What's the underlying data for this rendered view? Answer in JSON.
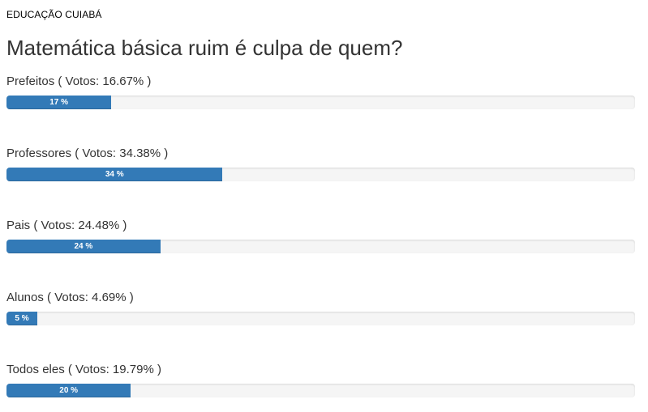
{
  "site_label": "EDUCAÇÃO CUIABÁ",
  "poll": {
    "title": "Matemática básica ruim é culpa de quem?",
    "bar_color": "#337ab7",
    "track_color": "#f5f5f5",
    "options": [
      {
        "label": "Prefeitos ( Votos: 16.67% )",
        "percent": 16.67,
        "bar_text": "17 %"
      },
      {
        "label": "Professores ( Votos: 34.38% )",
        "percent": 34.38,
        "bar_text": "34 %"
      },
      {
        "label": "Pais ( Votos: 24.48% )",
        "percent": 24.48,
        "bar_text": "24 %"
      },
      {
        "label": "Alunos ( Votos: 4.69% )",
        "percent": 4.69,
        "bar_text": "5 %"
      },
      {
        "label": "Todos eles ( Votos: 19.79% )",
        "percent": 19.79,
        "bar_text": "20 %"
      }
    ]
  }
}
